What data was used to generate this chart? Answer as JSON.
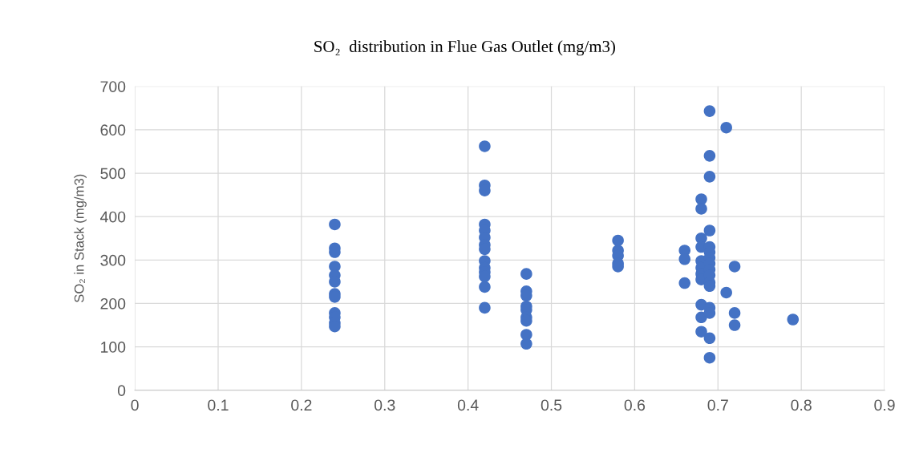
{
  "chart_data": {
    "type": "scatter",
    "title": "SO₂  distribution in Flue Gas Outlet (mg/m3)",
    "ylabel": "SO₂ in Stack (mg/m3)",
    "x": [
      0.24,
      0.24,
      0.24,
      0.24,
      0.24,
      0.24,
      0.24,
      0.24,
      0.24,
      0.24,
      0.24,
      0.24,
      0.42,
      0.42,
      0.42,
      0.42,
      0.42,
      0.42,
      0.42,
      0.42,
      0.42,
      0.42,
      0.42,
      0.42,
      0.42,
      0.42,
      0.47,
      0.47,
      0.47,
      0.47,
      0.47,
      0.47,
      0.47,
      0.47,
      0.47,
      0.58,
      0.58,
      0.58,
      0.58,
      0.58,
      0.66,
      0.66,
      0.66,
      0.68,
      0.68,
      0.68,
      0.68,
      0.68,
      0.68,
      0.68,
      0.68,
      0.68,
      0.68,
      0.68,
      0.69,
      0.69,
      0.69,
      0.69,
      0.69,
      0.69,
      0.69,
      0.69,
      0.69,
      0.69,
      0.69,
      0.69,
      0.69,
      0.69,
      0.69,
      0.69,
      0.71,
      0.71,
      0.72,
      0.72,
      0.72,
      0.79
    ],
    "series": [
      {
        "color": "#4472c4",
        "values": [
          382,
          327,
          318,
          285,
          265,
          250,
          222,
          215,
          178,
          168,
          155,
          147,
          562,
          472,
          460,
          382,
          368,
          352,
          335,
          325,
          298,
          282,
          272,
          262,
          238,
          190,
          268,
          228,
          218,
          193,
          185,
          168,
          160,
          128,
          107,
          345,
          322,
          310,
          292,
          285,
          322,
          302,
          247,
          440,
          418,
          350,
          330,
          298,
          282,
          268,
          255,
          197,
          168,
          135,
          643,
          540,
          492,
          368,
          330,
          318,
          305,
          292,
          278,
          265,
          248,
          240,
          190,
          178,
          120,
          75,
          605,
          225,
          285,
          178,
          150,
          163
        ]
      }
    ],
    "xlim": [
      0,
      0.9
    ],
    "xticks": [
      {
        "value": 0,
        "label": "0"
      },
      0.1,
      0.2,
      0.3,
      0.4,
      0.5,
      0.6,
      0.7,
      0.8,
      0.9
    ],
    "ylim": [
      0,
      700
    ],
    "yticks": [
      0,
      100,
      200,
      300,
      400,
      500,
      600,
      700
    ],
    "grid": true,
    "marker": "circle"
  }
}
